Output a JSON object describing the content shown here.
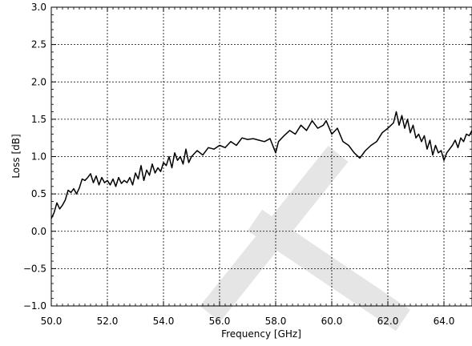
{
  "chart_data": {
    "type": "line",
    "xlabel": "Frequency [GHz]",
    "ylabel": "Loss [dB]",
    "xlim": [
      50.0,
      65.0
    ],
    "ylim": [
      -1.0,
      3.0
    ],
    "xticks": [
      "50.0",
      "52.0",
      "54.0",
      "56.0",
      "58.0",
      "60.0",
      "62.0",
      "64.0"
    ],
    "yticks": [
      "3.0",
      "2.5",
      "2.0",
      "1.5",
      "1.0",
      "0.5",
      "0.0",
      "−0.5",
      "−1.0"
    ],
    "grid": true,
    "line_color": "#000000",
    "watermark_color": "#e5e5e5",
    "series": [
      {
        "x": [
          50.0,
          50.1,
          50.2,
          50.3,
          50.4,
          50.5,
          50.6,
          50.7,
          50.8,
          50.9,
          51.0,
          51.1,
          51.2,
          51.3,
          51.4,
          51.5,
          51.6,
          51.7,
          51.8,
          51.9,
          52.0,
          52.1,
          52.2,
          52.3,
          52.4,
          52.5,
          52.6,
          52.7,
          52.8,
          52.9,
          53.0,
          53.1,
          53.2,
          53.3,
          53.4,
          53.5,
          53.6,
          53.7,
          53.8,
          53.9,
          54.0,
          54.1,
          54.2,
          54.3,
          54.4,
          54.5,
          54.6,
          54.7,
          54.8,
          54.9,
          55.0,
          55.2,
          55.4,
          55.6,
          55.8,
          56.0,
          56.2,
          56.4,
          56.6,
          56.8,
          57.0,
          57.2,
          57.4,
          57.6,
          57.8,
          58.0,
          58.1,
          58.3,
          58.5,
          58.7,
          58.9,
          59.1,
          59.3,
          59.5,
          59.7,
          59.8,
          60.0,
          60.2,
          60.4,
          60.6,
          60.8,
          61.0,
          61.2,
          61.4,
          61.6,
          61.8,
          62.0,
          62.2,
          62.3,
          62.4,
          62.5,
          62.6,
          62.7,
          62.8,
          62.9,
          63.0,
          63.1,
          63.2,
          63.3,
          63.4,
          63.5,
          63.6,
          63.7,
          63.8,
          63.9,
          64.0,
          64.1,
          64.2,
          64.3,
          64.4,
          64.5,
          64.6,
          64.7,
          64.8,
          64.9,
          65.0
        ],
        "y": [
          0.17,
          0.25,
          0.38,
          0.3,
          0.35,
          0.42,
          0.55,
          0.52,
          0.57,
          0.5,
          0.58,
          0.7,
          0.68,
          0.72,
          0.77,
          0.65,
          0.74,
          0.62,
          0.72,
          0.65,
          0.68,
          0.62,
          0.7,
          0.6,
          0.72,
          0.64,
          0.68,
          0.65,
          0.72,
          0.62,
          0.78,
          0.7,
          0.88,
          0.68,
          0.82,
          0.75,
          0.9,
          0.78,
          0.85,
          0.8,
          0.92,
          0.88,
          1.0,
          0.85,
          1.05,
          0.95,
          1.0,
          0.9,
          1.1,
          0.92,
          1.0,
          1.08,
          1.02,
          1.12,
          1.1,
          1.15,
          1.12,
          1.2,
          1.15,
          1.25,
          1.23,
          1.24,
          1.22,
          1.2,
          1.24,
          1.05,
          1.2,
          1.28,
          1.35,
          1.3,
          1.42,
          1.35,
          1.48,
          1.38,
          1.42,
          1.48,
          1.3,
          1.38,
          1.2,
          1.15,
          1.05,
          0.98,
          1.08,
          1.15,
          1.2,
          1.32,
          1.38,
          1.45,
          1.6,
          1.42,
          1.55,
          1.38,
          1.5,
          1.32,
          1.42,
          1.25,
          1.3,
          1.2,
          1.28,
          1.1,
          1.22,
          1.02,
          1.15,
          1.05,
          1.08,
          0.95,
          1.05,
          1.1,
          1.15,
          1.22,
          1.12,
          1.25,
          1.2,
          1.3,
          1.28,
          1.35
        ]
      }
    ]
  }
}
